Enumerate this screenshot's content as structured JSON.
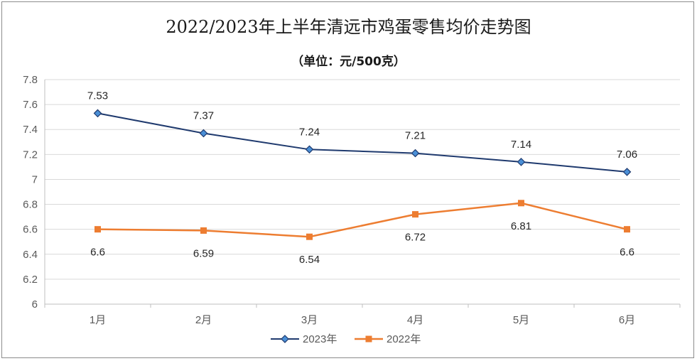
{
  "chart_data": {
    "type": "line",
    "title": "2022/2023年上半年清远市鸡蛋零售均价走势图",
    "subtitle": "（单位：元/500克）",
    "categories": [
      "1月",
      "2月",
      "3月",
      "4月",
      "5月",
      "6月"
    ],
    "series": [
      {
        "name": "2023年",
        "values": [
          7.53,
          7.37,
          7.24,
          7.21,
          7.14,
          7.06
        ],
        "color": "#1f3a6e",
        "marker": "diamond",
        "label_position": "above"
      },
      {
        "name": "2022年",
        "values": [
          6.6,
          6.59,
          6.54,
          6.72,
          6.81,
          6.6
        ],
        "color": "#ed7d31",
        "marker": "square",
        "label_position": "below"
      }
    ],
    "ylim": [
      6,
      7.8
    ],
    "yticks": [
      "6",
      "6.2",
      "6.4",
      "6.6",
      "6.8",
      "7",
      "7.2",
      "7.4",
      "7.6",
      "7.8"
    ],
    "ytick_values": [
      6,
      6.2,
      6.4,
      6.6,
      6.8,
      7,
      7.2,
      7.4,
      7.6,
      7.8
    ],
    "grid": true,
    "legend_position": "bottom-center",
    "xlabel": "",
    "ylabel": ""
  }
}
